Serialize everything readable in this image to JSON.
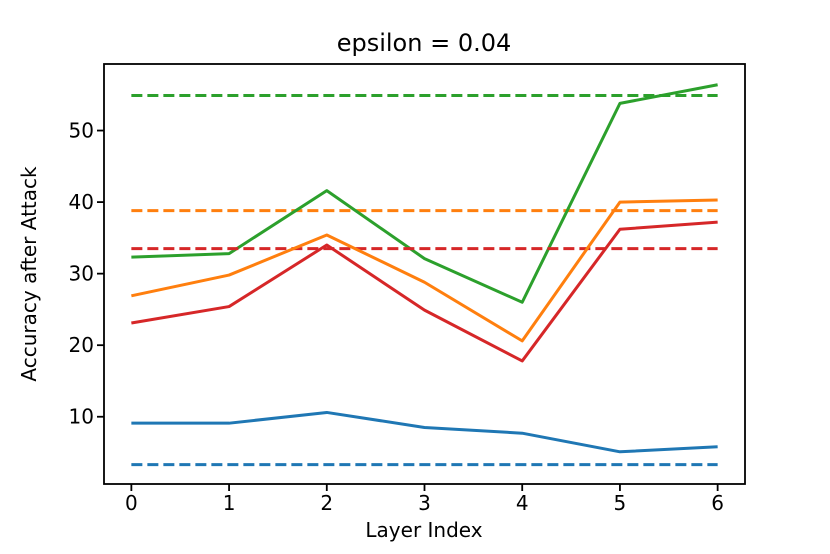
{
  "figure": {
    "background": "#ffffff",
    "spine_color": "#000000"
  },
  "chart_data": {
    "type": "line",
    "title": "epsilon = 0.04",
    "xlabel": "Layer Index",
    "ylabel": "Accuracy after Attack",
    "x": [
      0,
      1,
      2,
      3,
      4,
      5,
      6
    ],
    "xticks": [
      0,
      1,
      2,
      3,
      4,
      5,
      6
    ],
    "yticks": [
      10,
      20,
      30,
      40,
      50
    ],
    "xlim": [
      -0.28,
      6.28
    ],
    "ylim": [
      0.6,
      59.3
    ],
    "grid": false,
    "legend": "none",
    "series": [
      {
        "name": "blue-solid",
        "style": "solid",
        "color": "#1f77b4",
        "values": [
          9.1,
          9.1,
          10.6,
          8.5,
          7.7,
          5.1,
          5.8
        ]
      },
      {
        "name": "orange-solid",
        "style": "solid",
        "color": "#ff7f0e",
        "values": [
          26.9,
          29.8,
          35.4,
          28.8,
          20.6,
          40.0,
          40.3
        ]
      },
      {
        "name": "red-solid",
        "style": "solid",
        "color": "#d62728",
        "values": [
          23.1,
          25.4,
          34.0,
          24.9,
          17.8,
          36.2,
          37.2
        ]
      },
      {
        "name": "green-solid",
        "style": "solid",
        "color": "#2ca02c",
        "values": [
          32.3,
          32.8,
          41.6,
          32.1,
          26.0,
          53.8,
          56.4
        ]
      }
    ],
    "baselines": [
      {
        "name": "blue-dashed",
        "style": "dashed",
        "color": "#1f77b4",
        "value": 3.3
      },
      {
        "name": "orange-dashed",
        "style": "dashed",
        "color": "#ff7f0e",
        "value": 38.8
      },
      {
        "name": "red-dashed",
        "style": "dashed",
        "color": "#d62728",
        "value": 33.5
      },
      {
        "name": "green-dashed",
        "style": "dashed",
        "color": "#2ca02c",
        "value": 54.9
      }
    ]
  }
}
